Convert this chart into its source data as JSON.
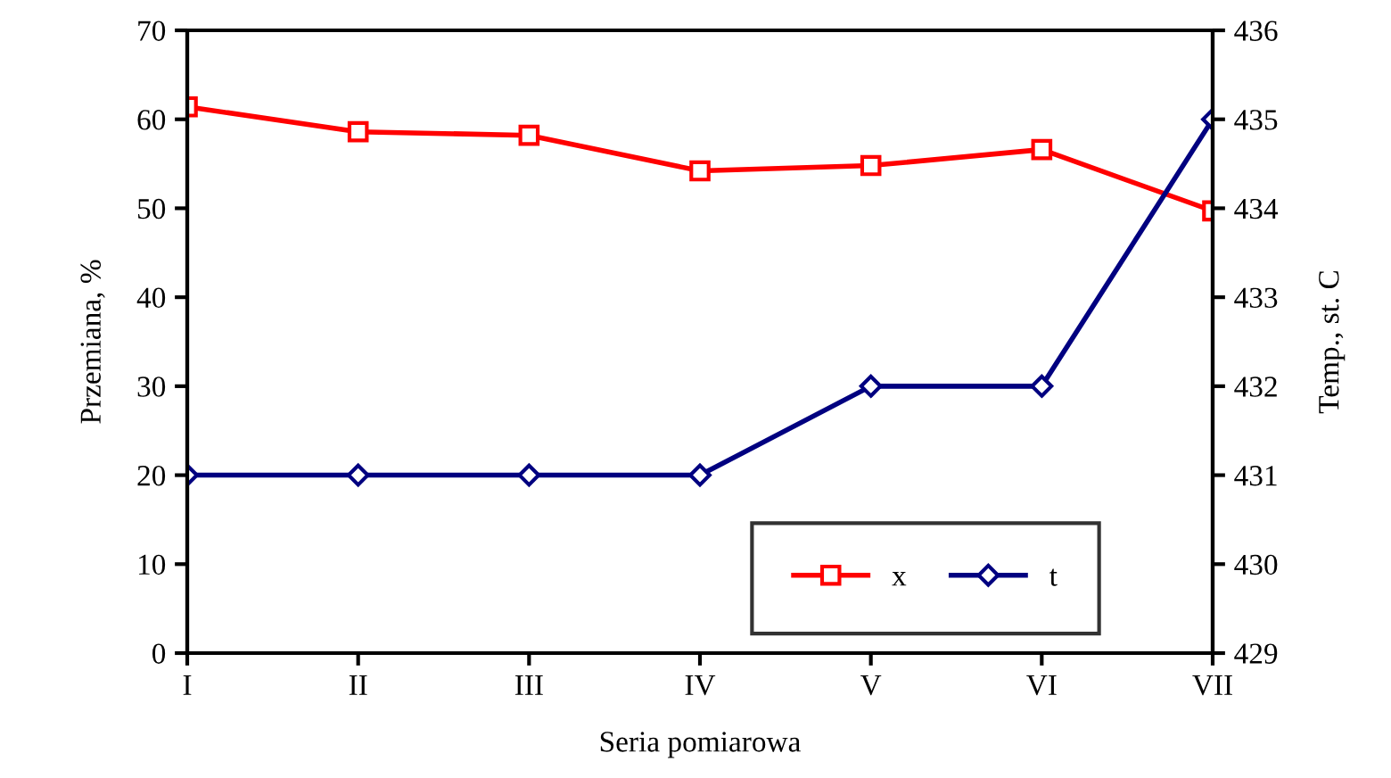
{
  "chart_data": {
    "type": "line",
    "xlabel": "Seria pomiarowa",
    "ylabel": "Przemiana, %",
    "y2label": "Temp., st. C",
    "categories": [
      "I",
      "II",
      "III",
      "IV",
      "V",
      "VI",
      "VII"
    ],
    "series": [
      {
        "name": "x",
        "color": "#ff0000",
        "marker": "square",
        "values": [
          61.4,
          58.6,
          58.2,
          54.2,
          54.8,
          56.6,
          49.7
        ]
      },
      {
        "name": "t",
        "color": "#000080",
        "marker": "diamond",
        "axis": "y2",
        "values": [
          431,
          431,
          431,
          431,
          432,
          432,
          435
        ]
      }
    ],
    "ylim": [
      0,
      70
    ],
    "yticks": [
      0,
      10,
      20,
      30,
      40,
      50,
      60,
      70
    ],
    "y2lim": [
      429,
      436
    ],
    "y2ticks": [
      429,
      430,
      431,
      432,
      433,
      434,
      435,
      436
    ],
    "grid": false,
    "legend": "bottom right",
    "line_style": "solid"
  }
}
